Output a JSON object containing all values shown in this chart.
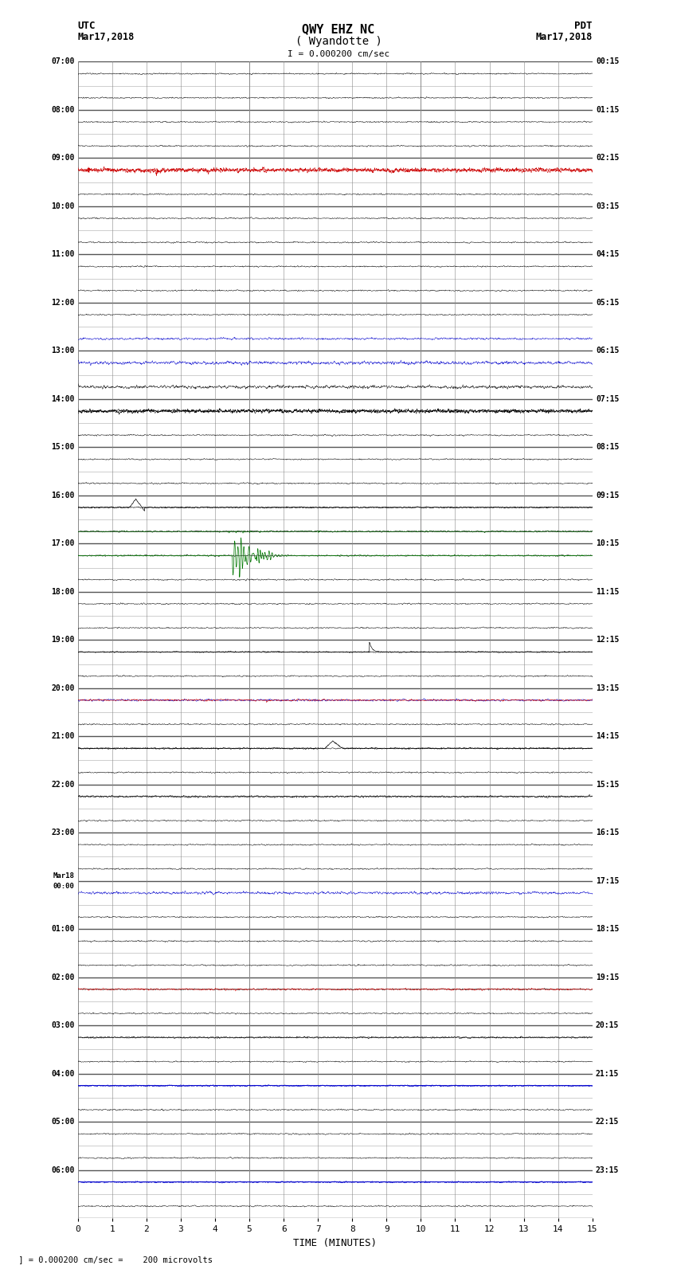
{
  "title_line1": "QWY EHZ NC",
  "title_line2": "( Wyandotte )",
  "title_scale": "I = 0.000200 cm/sec",
  "left_label_line1": "UTC",
  "left_label_line2": "Mar17,2018",
  "right_label_line1": "PDT",
  "right_label_line2": "Mar17,2018",
  "bottom_label": "TIME (MINUTES)",
  "scale_text": " ] = 0.000200 cm/sec =    200 microvolts",
  "xlabel_ticks": [
    0,
    1,
    2,
    3,
    4,
    5,
    6,
    7,
    8,
    9,
    10,
    11,
    12,
    13,
    14,
    15
  ],
  "xlim": [
    0,
    15
  ],
  "num_rows": 48,
  "background_color": "#ffffff",
  "grid_color": "#888888",
  "trace_color_black": "#000000",
  "trace_color_red": "#cc0000",
  "trace_color_blue": "#0000cc",
  "trace_color_green": "#007700",
  "row_labels_left": [
    "07:00",
    "",
    "08:00",
    "",
    "09:00",
    "",
    "10:00",
    "",
    "11:00",
    "",
    "12:00",
    "",
    "13:00",
    "",
    "14:00",
    "",
    "15:00",
    "",
    "16:00",
    "",
    "17:00",
    "",
    "18:00",
    "",
    "19:00",
    "",
    "20:00",
    "",
    "21:00",
    "",
    "22:00",
    "",
    "23:00",
    "",
    "Mar18\n00:00",
    "",
    "01:00",
    "",
    "02:00",
    "",
    "03:00",
    "",
    "04:00",
    "",
    "05:00",
    "",
    "06:00",
    ""
  ],
  "row_labels_right": [
    "00:15",
    "",
    "01:15",
    "",
    "02:15",
    "",
    "03:15",
    "",
    "04:15",
    "",
    "05:15",
    "",
    "06:15",
    "",
    "07:15",
    "",
    "08:15",
    "",
    "09:15",
    "",
    "10:15",
    "",
    "11:15",
    "",
    "12:15",
    "",
    "13:15",
    "",
    "14:15",
    "",
    "15:15",
    "",
    "16:15",
    "",
    "17:15",
    "",
    "18:15",
    "",
    "19:15",
    "",
    "20:15",
    "",
    "21:15",
    "",
    "22:15",
    "",
    "23:15",
    ""
  ]
}
